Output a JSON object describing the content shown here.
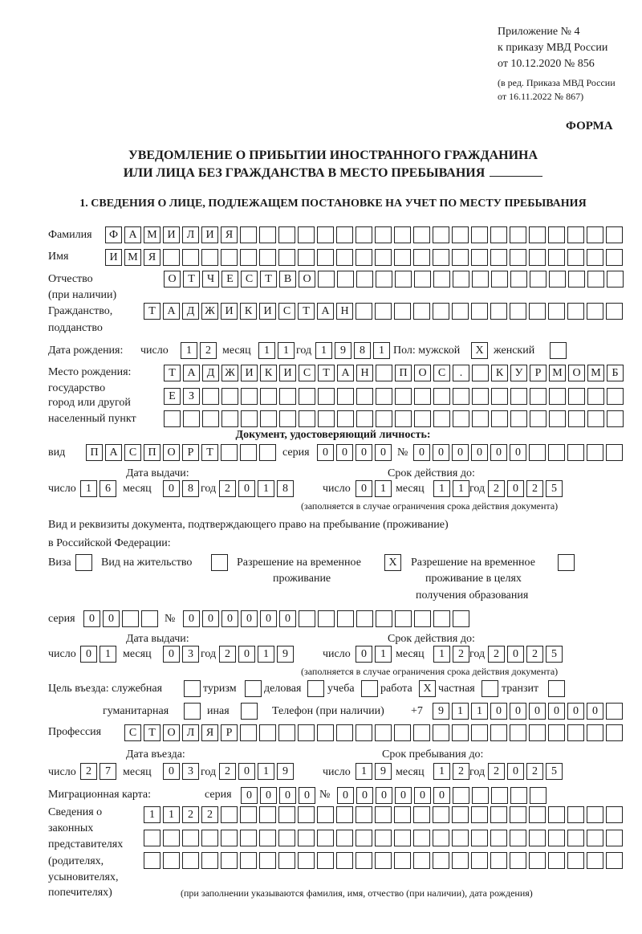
{
  "header": {
    "appendix": "Приложение № 4",
    "order": "к приказу МВД России",
    "order_date": "от 10.12.2020 № 856",
    "revision1": "(в ред. Приказа МВД России",
    "revision2": "от 16.11.2022 № 867)",
    "form_label": "ФОРМА",
    "title1": "УВЕДОМЛЕНИЕ О ПРИБЫТИИ ИНОСТРАННОГО ГРАЖДАНИНА",
    "title2": "ИЛИ ЛИЦА БЕЗ ГРАЖДАНСТВА В МЕСТО ПРЕБЫВАНИЯ"
  },
  "section1": {
    "heading": "1. СВЕДЕНИЯ О ЛИЦЕ, ПОДЛЕЖАЩЕМ ПОСТАНОВКЕ НА УЧЕТ ПО МЕСТУ ПРЕБЫВАНИЯ",
    "labels": {
      "surname": "Фамилия",
      "name": "Имя",
      "patronymic": "Отчество",
      "patronymic_note": "(при наличии)",
      "citizenship": "Гражданство,",
      "citizenship2": "подданство",
      "birth_date": "Дата рождения:",
      "day": "число",
      "month": "месяц",
      "year": "год",
      "sex": "Пол: мужской",
      "female": "женский",
      "birth_place1": "Место рождения:",
      "birth_place2": "государство",
      "birth_place3": "город или другой",
      "birth_place4": "населенный пункт",
      "id_doc": "Документ, удостоверяющий личность:",
      "kind": "вид",
      "series": "серия",
      "number": "№",
      "issue_date": "Дата выдачи:",
      "valid_until": "Срок действия до:",
      "validity_note": "(заполняется в случае ограничения срока действия документа)",
      "stay_doc1": "Вид и реквизиты документа, подтверждающего право на пребывание (проживание)",
      "stay_doc2": "в Российской Федерации:",
      "visa": "Виза",
      "residence": "Вид на жительство",
      "temp_res1": "Разрешение на временное",
      "temp_res2": "проживание",
      "temp_edu1": "Разрешение на временное",
      "temp_edu2": "проживание в целях",
      "temp_edu3": "получения образования",
      "purpose": "Цель въезда: служебная",
      "tourism": "туризм",
      "business": "деловая",
      "study": "учеба",
      "work": "работа",
      "private": "частная",
      "transit": "транзит",
      "humanitarian": "гуманитарная",
      "other": "иная",
      "phone": "Телефон (при наличии)",
      "phone_prefix": "+7",
      "profession": "Профессия",
      "entry_date": "Дата въезда:",
      "stay_until": "Срок пребывания до:",
      "migration_card": "Миграционная карта:",
      "reps1": "Сведения о",
      "reps2": "законных",
      "reps3": "представителях",
      "reps4": "(родителях,",
      "reps5": "усыновителях,",
      "reps6": "попечителях)",
      "reps_note": "(при заполнении указываются фамилия, имя, отчество (при наличии), дата рождения)"
    },
    "values": {
      "surname": "ФАМИЛИЯ",
      "name": "ИМЯ",
      "patronymic": "ОТЧЕСТВО",
      "citizenship": "ТАДЖИКИСТАН",
      "birth_day": "12",
      "birth_month": "11",
      "birth_year": "1981",
      "male": "X",
      "female": "",
      "birth_place_1": "ТАДЖИКИСТАН ПОС. КУРМОМБ",
      "birth_place_2": "ЕЗ",
      "birth_place_3": "",
      "id_kind": "ПАСПОРТ",
      "id_series": "0000",
      "id_number": "000000",
      "id_issue_day": "16",
      "id_issue_month": "08",
      "id_issue_year": "2018",
      "id_valid_day": "01",
      "id_valid_month": "11",
      "id_valid_year": "2025",
      "visa": "",
      "residence": "",
      "temp_res": "X",
      "temp_edu": "",
      "stay_series": "00",
      "stay_number": "000000",
      "stay_issue_day": "01",
      "stay_issue_month": "03",
      "stay_issue_year": "2019",
      "stay_valid_day": "01",
      "stay_valid_month": "12",
      "stay_valid_year": "2025",
      "purpose_official": "",
      "purpose_tourism": "",
      "purpose_business": "",
      "purpose_study": "",
      "purpose_work": "X",
      "purpose_private": "",
      "purpose_transit": "",
      "purpose_humanitarian": "",
      "purpose_other": "",
      "phone": "911000000",
      "profession": "СТОЛЯР",
      "entry_day": "27",
      "entry_month": "03",
      "entry_year": "2019",
      "stay_until_day": "19",
      "stay_until_month": "12",
      "stay_until_year": "2025",
      "mc_series": "0000",
      "mc_number": "000000",
      "reps_1": "1122",
      "reps_2": "",
      "reps_3": ""
    }
  }
}
